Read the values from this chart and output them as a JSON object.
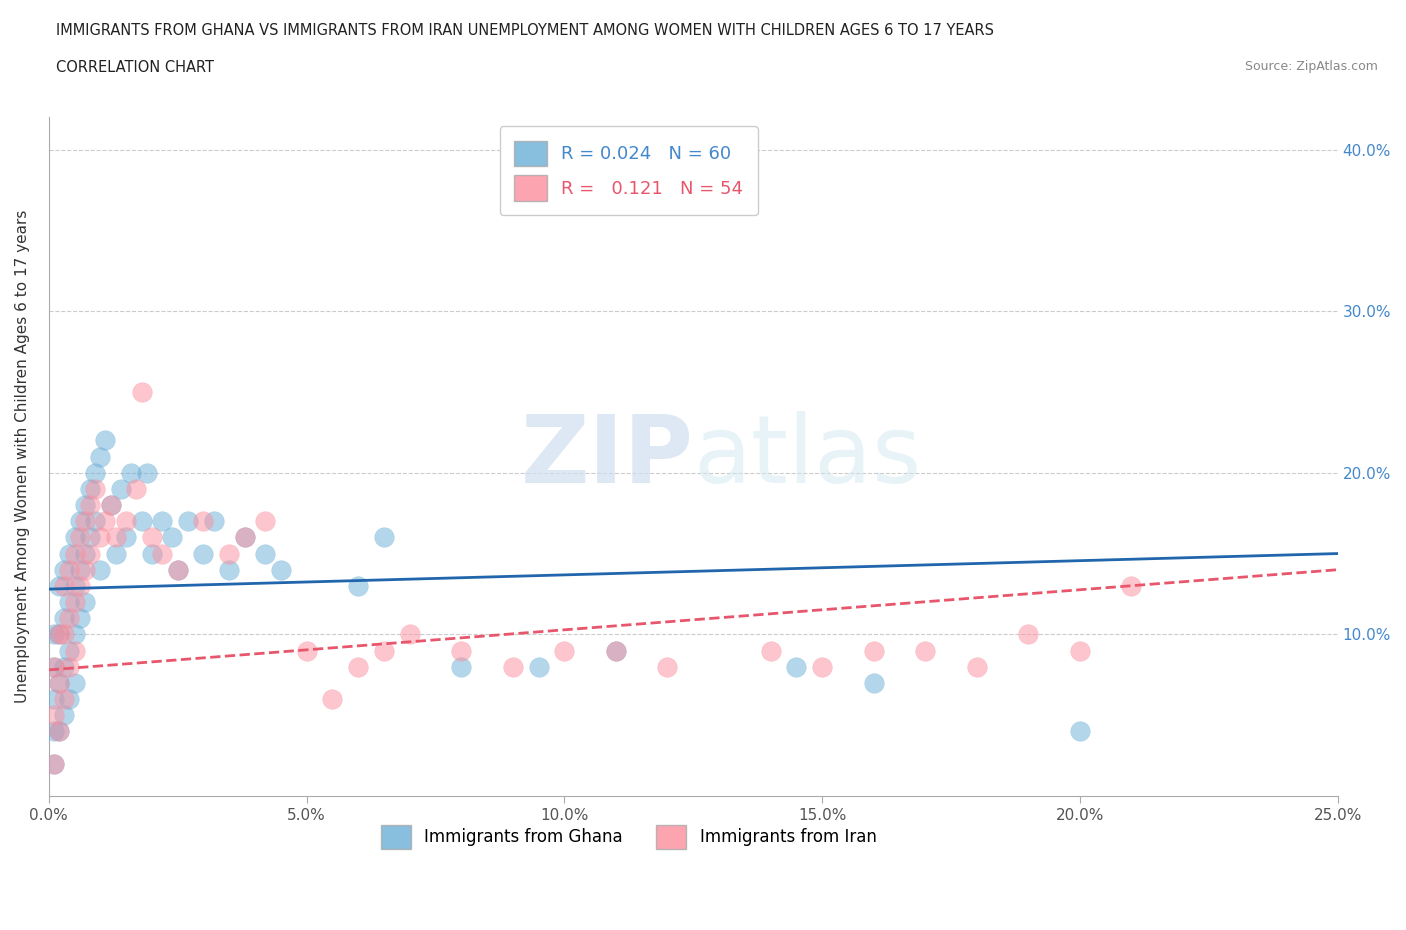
{
  "title_line1": "IMMIGRANTS FROM GHANA VS IMMIGRANTS FROM IRAN UNEMPLOYMENT AMONG WOMEN WITH CHILDREN AGES 6 TO 17 YEARS",
  "title_line2": "CORRELATION CHART",
  "source": "Source: ZipAtlas.com",
  "ylabel_label": "Unemployment Among Women with Children Ages 6 to 17 years",
  "xlim": [
    0.0,
    0.25
  ],
  "ylim": [
    0.0,
    0.42
  ],
  "ghana_R": "0.024",
  "ghana_N": "60",
  "iran_R": "0.121",
  "iran_N": "54",
  "ghana_color": "#6baed6",
  "iran_color": "#fc8d9c",
  "ghana_line_color": "#2166ac",
  "iran_line_color": "#e8566c",
  "right_ytick_color": "#4488cc",
  "ghana_x": [
    0.001,
    0.001,
    0.001,
    0.001,
    0.001,
    0.002,
    0.002,
    0.002,
    0.002,
    0.003,
    0.003,
    0.003,
    0.003,
    0.004,
    0.004,
    0.004,
    0.004,
    0.005,
    0.005,
    0.005,
    0.005,
    0.006,
    0.006,
    0.006,
    0.007,
    0.007,
    0.007,
    0.008,
    0.008,
    0.009,
    0.009,
    0.01,
    0.01,
    0.011,
    0.012,
    0.013,
    0.014,
    0.015,
    0.016,
    0.018,
    0.019,
    0.02,
    0.022,
    0.024,
    0.025,
    0.027,
    0.03,
    0.032,
    0.035,
    0.038,
    0.042,
    0.045,
    0.06,
    0.065,
    0.08,
    0.095,
    0.11,
    0.145,
    0.16,
    0.2
  ],
  "ghana_y": [
    0.1,
    0.08,
    0.06,
    0.04,
    0.02,
    0.13,
    0.1,
    0.07,
    0.04,
    0.14,
    0.11,
    0.08,
    0.05,
    0.15,
    0.12,
    0.09,
    0.06,
    0.16,
    0.13,
    0.1,
    0.07,
    0.17,
    0.14,
    0.11,
    0.18,
    0.15,
    0.12,
    0.19,
    0.16,
    0.2,
    0.17,
    0.21,
    0.14,
    0.22,
    0.18,
    0.15,
    0.19,
    0.16,
    0.2,
    0.17,
    0.2,
    0.15,
    0.17,
    0.16,
    0.14,
    0.17,
    0.15,
    0.17,
    0.14,
    0.16,
    0.15,
    0.14,
    0.13,
    0.16,
    0.08,
    0.08,
    0.09,
    0.08,
    0.07,
    0.04
  ],
  "iran_x": [
    0.001,
    0.001,
    0.001,
    0.002,
    0.002,
    0.002,
    0.003,
    0.003,
    0.003,
    0.004,
    0.004,
    0.004,
    0.005,
    0.005,
    0.005,
    0.006,
    0.006,
    0.007,
    0.007,
    0.008,
    0.008,
    0.009,
    0.01,
    0.011,
    0.012,
    0.013,
    0.015,
    0.017,
    0.018,
    0.02,
    0.022,
    0.025,
    0.03,
    0.035,
    0.038,
    0.042,
    0.05,
    0.055,
    0.06,
    0.065,
    0.07,
    0.08,
    0.09,
    0.1,
    0.11,
    0.12,
    0.14,
    0.15,
    0.16,
    0.17,
    0.18,
    0.19,
    0.2,
    0.21
  ],
  "iran_y": [
    0.08,
    0.05,
    0.02,
    0.1,
    0.07,
    0.04,
    0.13,
    0.1,
    0.06,
    0.14,
    0.11,
    0.08,
    0.15,
    0.12,
    0.09,
    0.16,
    0.13,
    0.17,
    0.14,
    0.18,
    0.15,
    0.19,
    0.16,
    0.17,
    0.18,
    0.16,
    0.17,
    0.19,
    0.25,
    0.16,
    0.15,
    0.14,
    0.17,
    0.15,
    0.16,
    0.17,
    0.09,
    0.06,
    0.08,
    0.09,
    0.1,
    0.09,
    0.08,
    0.09,
    0.09,
    0.08,
    0.09,
    0.08,
    0.09,
    0.09,
    0.08,
    0.1,
    0.09,
    0.13
  ]
}
